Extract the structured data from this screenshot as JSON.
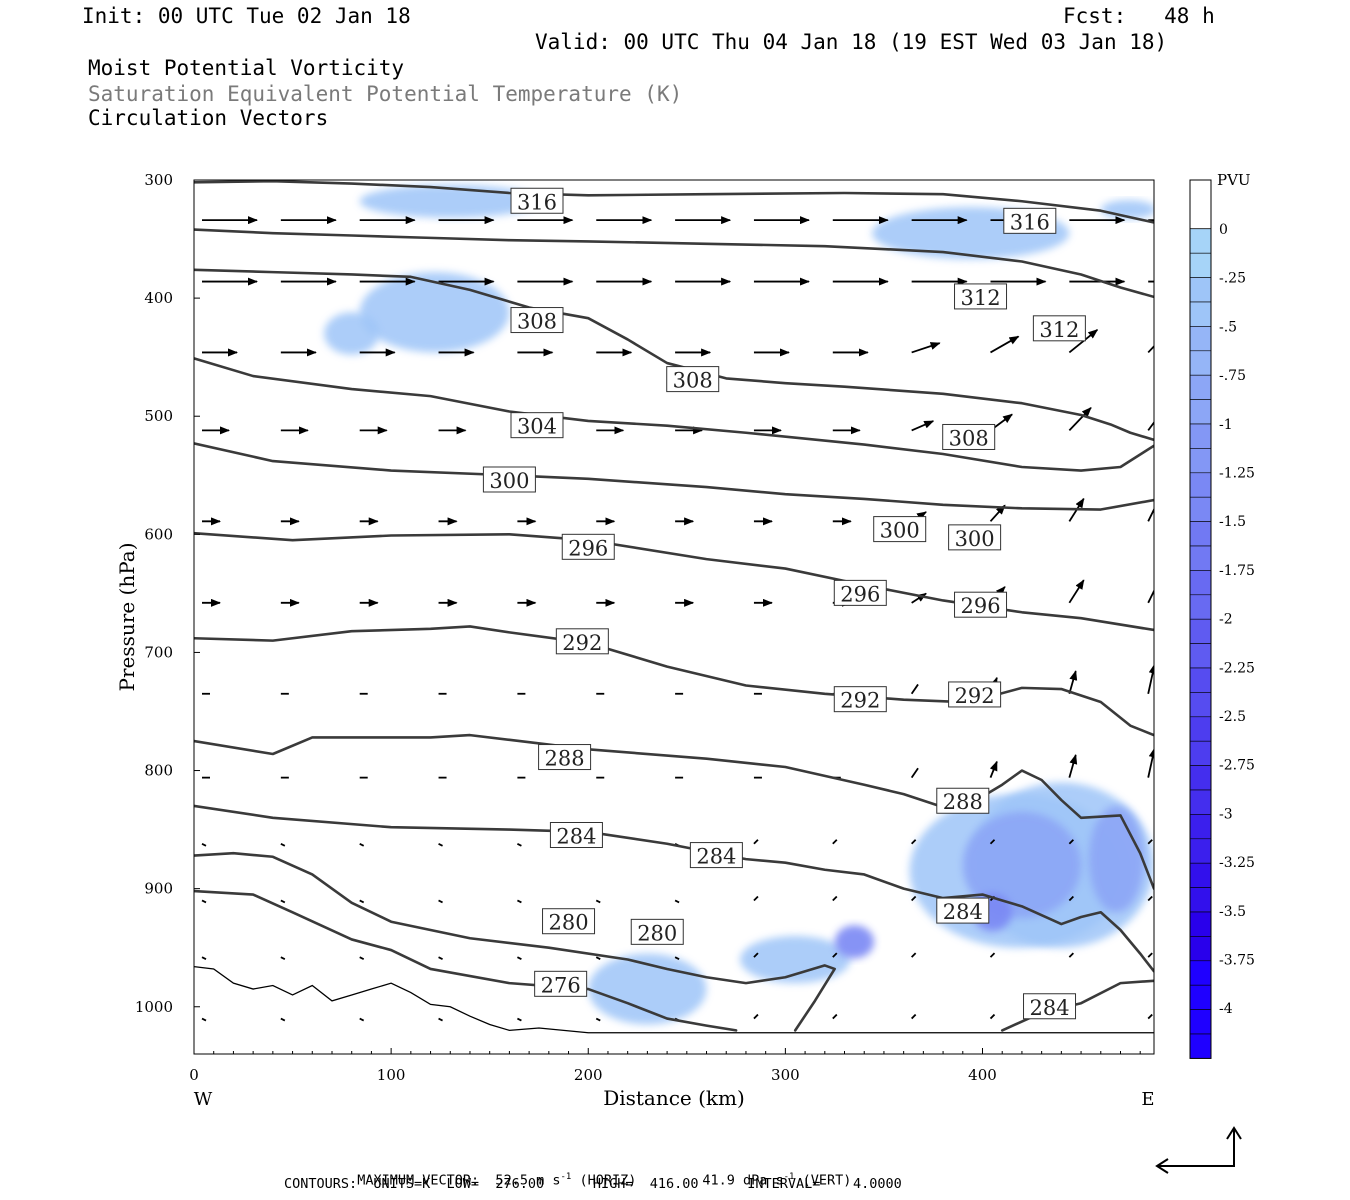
{
  "header": {
    "init": "Init: 00 UTC Tue 02 Jan 18",
    "fcst": "Fcst:   48 h",
    "valid": "Valid: 00 UTC Thu 04 Jan 18 (19 EST Wed 03 Jan 18)"
  },
  "titles": {
    "line1": "Moist Potential Vorticity",
    "line2": "Saturation Equivalent Potential Temperature (K)",
    "line3": "Circulation Vectors"
  },
  "colors": {
    "contour": "#3a3a3a",
    "pv_fills": [
      "#a6d4f8",
      "#9ec5f8",
      "#95b5f7",
      "#8ca6f6",
      "#8397f5",
      "#7a88f4",
      "#7179f3",
      "#686af2",
      "#5f5bf1",
      "#564cf0",
      "#4d3def",
      "#442eee",
      "#3b1fed",
      "#3210ec",
      "#2900eb",
      "#1f00ff"
    ]
  },
  "footer": {
    "max_vector": "MAXIMUM VECTOR:  52.5 m s",
    "max_vector_unit_exp": "-1",
    "max_vector_horiz": " (HORIZ)",
    "max_vector_vert_val": "41.9 dPa s",
    "max_vector_vert_exp": "-1",
    "max_vector_vert": " (VERT)",
    "contours": "CONTOURS:  UNITS=K  LOW=  276.00      HIGH=  416.00      INTERVAL=    4.0000"
  },
  "chart_data": {
    "type": "contour",
    "xlabel": "Distance (km)",
    "ylabel": "Pressure (hPa)",
    "xlim": [
      0,
      487
    ],
    "ylim": [
      1040,
      300
    ],
    "x_ticks": [
      0,
      100,
      200,
      300,
      400
    ],
    "y_ticks": [
      300,
      400,
      500,
      600,
      700,
      800,
      900,
      1000
    ],
    "x_end_labels": {
      "left": "W",
      "right": "E"
    },
    "colorbar": {
      "title": "PVU",
      "ticks": [
        "0",
        "-.25",
        "-.5",
        "-.75",
        "-1",
        "-1.25",
        "-1.5",
        "-1.75",
        "-2",
        "-2.25",
        "-2.5",
        "-2.75",
        "-3",
        "-3.25",
        "-3.5",
        "-3.75",
        "-4"
      ]
    },
    "contour_lines": [
      {
        "points": [
          [
            0,
            302
          ],
          [
            40,
            301
          ],
          [
            80,
            303
          ],
          [
            120,
            306
          ],
          [
            160,
            311
          ],
          [
            200,
            313
          ],
          [
            260,
            312
          ],
          [
            330,
            311
          ],
          [
            380,
            312
          ],
          [
            420,
            318
          ],
          [
            460,
            326
          ],
          [
            487,
            336
          ]
        ]
      },
      {
        "points": [
          [
            0,
            342
          ],
          [
            40,
            345
          ],
          [
            80,
            347
          ],
          [
            120,
            349
          ],
          [
            160,
            351
          ],
          [
            200,
            352
          ],
          [
            260,
            354
          ],
          [
            320,
            356
          ],
          [
            380,
            361
          ],
          [
            420,
            369
          ],
          [
            450,
            380
          ],
          [
            470,
            391
          ],
          [
            487,
            399
          ]
        ]
      },
      {
        "points": [
          [
            0,
            376
          ],
          [
            40,
            378
          ],
          [
            80,
            380
          ],
          [
            110,
            382
          ],
          [
            140,
            393
          ],
          [
            170,
            408
          ],
          [
            200,
            417
          ],
          [
            220,
            435
          ],
          [
            240,
            455
          ],
          [
            270,
            468
          ],
          [
            300,
            472
          ],
          [
            330,
            475
          ],
          [
            380,
            481
          ],
          [
            420,
            489
          ],
          [
            450,
            499
          ],
          [
            465,
            507
          ],
          [
            475,
            514
          ],
          [
            487,
            520
          ]
        ]
      },
      {
        "points": [
          [
            0,
            451
          ],
          [
            30,
            466
          ],
          [
            80,
            477
          ],
          [
            120,
            483
          ],
          [
            160,
            496
          ],
          [
            200,
            504
          ],
          [
            240,
            508
          ],
          [
            280,
            514
          ],
          [
            340,
            524
          ],
          [
            380,
            532
          ],
          [
            420,
            543
          ],
          [
            450,
            546
          ],
          [
            470,
            543
          ],
          [
            487,
            525
          ]
        ]
      },
      {
        "points": [
          [
            0,
            523
          ],
          [
            40,
            538
          ],
          [
            100,
            546
          ],
          [
            160,
            550
          ],
          [
            200,
            553
          ],
          [
            260,
            560
          ],
          [
            300,
            566
          ],
          [
            340,
            570
          ],
          [
            380,
            575
          ],
          [
            420,
            578
          ],
          [
            460,
            579
          ],
          [
            487,
            571
          ]
        ]
      },
      {
        "points": [
          [
            0,
            599
          ],
          [
            50,
            605
          ],
          [
            100,
            601
          ],
          [
            160,
            600
          ],
          [
            200,
            605
          ],
          [
            260,
            621
          ],
          [
            300,
            629
          ],
          [
            340,
            643
          ],
          [
            380,
            656
          ],
          [
            420,
            666
          ],
          [
            450,
            671
          ],
          [
            487,
            681
          ]
        ]
      },
      {
        "points": [
          [
            0,
            688
          ],
          [
            40,
            690
          ],
          [
            80,
            682
          ],
          [
            120,
            680
          ],
          [
            140,
            678
          ],
          [
            160,
            683
          ],
          [
            200,
            692
          ],
          [
            240,
            712
          ],
          [
            280,
            728
          ],
          [
            320,
            735
          ],
          [
            360,
            740
          ],
          [
            390,
            742
          ],
          [
            400,
            739
          ],
          [
            420,
            730
          ],
          [
            440,
            731
          ],
          [
            460,
            742
          ],
          [
            475,
            762
          ],
          [
            487,
            770
          ]
        ]
      },
      {
        "points": [
          [
            0,
            775
          ],
          [
            40,
            786
          ],
          [
            60,
            772
          ],
          [
            120,
            772
          ],
          [
            140,
            770
          ],
          [
            160,
            774
          ],
          [
            200,
            782
          ],
          [
            260,
            790
          ],
          [
            300,
            797
          ],
          [
            340,
            812
          ],
          [
            360,
            820
          ],
          [
            380,
            831
          ],
          [
            400,
            822
          ],
          [
            410,
            812
          ],
          [
            420,
            800
          ],
          [
            430,
            808
          ],
          [
            440,
            825
          ],
          [
            450,
            840
          ],
          [
            470,
            838
          ],
          [
            480,
            870
          ],
          [
            487,
            900
          ]
        ]
      },
      {
        "points": [
          [
            0,
            830
          ],
          [
            40,
            840
          ],
          [
            100,
            848
          ],
          [
            160,
            850
          ],
          [
            200,
            852
          ],
          [
            240,
            862
          ],
          [
            280,
            875
          ],
          [
            300,
            878
          ],
          [
            320,
            884
          ],
          [
            340,
            888
          ],
          [
            360,
            900
          ],
          [
            380,
            908
          ],
          [
            400,
            905
          ],
          [
            410,
            910
          ],
          [
            420,
            915
          ],
          [
            440,
            930
          ],
          [
            450,
            924
          ],
          [
            460,
            920
          ],
          [
            470,
            935
          ],
          [
            480,
            955
          ],
          [
            487,
            970
          ]
        ]
      },
      {
        "points": [
          [
            0,
            872
          ],
          [
            20,
            870
          ],
          [
            40,
            873
          ],
          [
            60,
            888
          ],
          [
            80,
            912
          ],
          [
            100,
            928
          ],
          [
            140,
            942
          ],
          [
            180,
            950
          ],
          [
            220,
            960
          ],
          [
            240,
            968
          ],
          [
            260,
            975
          ],
          [
            280,
            980
          ],
          [
            300,
            975
          ],
          [
            320,
            965
          ],
          [
            325,
            968
          ],
          [
            315,
            995
          ],
          [
            305,
            1020
          ]
        ]
      },
      {
        "points": [
          [
            0,
            902
          ],
          [
            30,
            905
          ],
          [
            50,
            920
          ],
          [
            80,
            943
          ],
          [
            100,
            952
          ],
          [
            120,
            968
          ],
          [
            160,
            980
          ],
          [
            200,
            985
          ],
          [
            220,
            997
          ],
          [
            240,
            1010
          ],
          [
            260,
            1016
          ],
          [
            275,
            1020
          ]
        ]
      },
      {
        "points": [
          [
            410,
            1020
          ],
          [
            430,
            1005
          ],
          [
            450,
            997
          ],
          [
            470,
            980
          ],
          [
            487,
            978
          ]
        ]
      }
    ],
    "contour_labels": [
      {
        "text": "316",
        "x": 174,
        "p": 318
      },
      {
        "text": "316",
        "x": 424,
        "p": 335
      },
      {
        "text": "312",
        "x": 399,
        "p": 399
      },
      {
        "text": "312",
        "x": 439,
        "p": 426
      },
      {
        "text": "308",
        "x": 174,
        "p": 419
      },
      {
        "text": "308",
        "x": 253,
        "p": 469
      },
      {
        "text": "308",
        "x": 393,
        "p": 518
      },
      {
        "text": "304",
        "x": 174,
        "p": 508
      },
      {
        "text": "300",
        "x": 160,
        "p": 554
      },
      {
        "text": "300",
        "x": 358,
        "p": 596
      },
      {
        "text": "300",
        "x": 396,
        "p": 603
      },
      {
        "text": "296",
        "x": 200,
        "p": 611
      },
      {
        "text": "296",
        "x": 338,
        "p": 650
      },
      {
        "text": "296",
        "x": 399,
        "p": 660
      },
      {
        "text": "292",
        "x": 197,
        "p": 691
      },
      {
        "text": "292",
        "x": 338,
        "p": 740
      },
      {
        "text": "292",
        "x": 396,
        "p": 736
      },
      {
        "text": "288",
        "x": 188,
        "p": 789
      },
      {
        "text": "288",
        "x": 390,
        "p": 826
      },
      {
        "text": "284",
        "x": 194,
        "p": 855
      },
      {
        "text": "284",
        "x": 265,
        "p": 872
      },
      {
        "text": "284",
        "x": 390,
        "p": 919
      },
      {
        "text": "284",
        "x": 434,
        "p": 1000
      },
      {
        "text": "280",
        "x": 190,
        "p": 928
      },
      {
        "text": "280",
        "x": 235,
        "p": 937
      },
      {
        "text": "276",
        "x": 186,
        "p": 981
      }
    ],
    "pv_regions": [
      {
        "level": 1,
        "cx": 130,
        "cy": 318,
        "rx": 46,
        "ry": 14
      },
      {
        "level": 1,
        "cx": 394,
        "cy": 345,
        "rx": 50,
        "ry": 22
      },
      {
        "level": 1,
        "cx": 474,
        "cy": 325,
        "rx": 14,
        "ry": 8
      },
      {
        "level": 1,
        "cx": 122,
        "cy": 412,
        "rx": 38,
        "ry": 34
      },
      {
        "level": 1,
        "cx": 80,
        "cy": 430,
        "rx": 14,
        "ry": 18
      },
      {
        "level": 1,
        "cx": 418,
        "cy": 885,
        "rx": 55,
        "ry": 65
      },
      {
        "level": 1,
        "cx": 440,
        "cy": 880,
        "rx": 47,
        "ry": 70
      },
      {
        "level": 1,
        "cx": 230,
        "cy": 985,
        "rx": 30,
        "ry": 30
      },
      {
        "level": 1,
        "cx": 305,
        "cy": 960,
        "rx": 28,
        "ry": 20
      },
      {
        "level": 2,
        "cx": 420,
        "cy": 880,
        "rx": 30,
        "ry": 45
      },
      {
        "level": 2,
        "cx": 468,
        "cy": 875,
        "rx": 14,
        "ry": 45
      },
      {
        "level": 3,
        "cx": 405,
        "cy": 920,
        "rx": 10,
        "ry": 16
      },
      {
        "level": 3,
        "cx": 335,
        "cy": 945,
        "rx": 10,
        "ry": 14
      }
    ]
  }
}
